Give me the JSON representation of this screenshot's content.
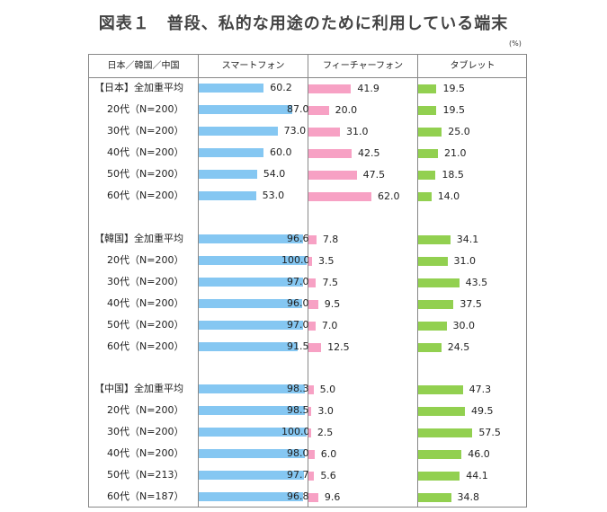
{
  "chart_data": {
    "type": "bar",
    "title": "図表１　普段、私的な用途のために利用している端末",
    "unit": "(%)",
    "header_label": "日本／韓国／中国",
    "columns": [
      {
        "name": "スマートフォン",
        "color": "#85c7f2"
      },
      {
        "name": "フィーチャーフォン",
        "color": "#f7a1c4"
      },
      {
        "name": "タブレット",
        "color": "#92d050"
      }
    ],
    "groups": [
      {
        "rows": [
          {
            "label": "【日本】全加重平均",
            "values": [
              60.2,
              41.9,
              19.5
            ]
          },
          {
            "label": "20代（N=200）",
            "values": [
              87.0,
              20.0,
              19.5
            ]
          },
          {
            "label": "30代（N=200）",
            "values": [
              73.0,
              31.0,
              25.0
            ]
          },
          {
            "label": "40代（N=200）",
            "values": [
              60.0,
              42.5,
              21.0
            ]
          },
          {
            "label": "50代（N=200）",
            "values": [
              54.0,
              47.5,
              18.5
            ]
          },
          {
            "label": "60代（N=200）",
            "values": [
              53.0,
              62.0,
              14.0
            ]
          }
        ]
      },
      {
        "rows": [
          {
            "label": "【韓国】全加重平均",
            "values": [
              96.6,
              7.8,
              34.1
            ]
          },
          {
            "label": "20代（N=200）",
            "values": [
              100.0,
              3.5,
              31.0
            ]
          },
          {
            "label": "30代（N=200）",
            "values": [
              97.0,
              7.5,
              43.5
            ]
          },
          {
            "label": "40代（N=200）",
            "values": [
              96.0,
              9.5,
              37.5
            ]
          },
          {
            "label": "50代（N=200）",
            "values": [
              97.0,
              7.0,
              30.0
            ]
          },
          {
            "label": "60代（N=200）",
            "values": [
              91.5,
              12.5,
              24.5
            ]
          }
        ]
      },
      {
        "rows": [
          {
            "label": "【中国】全加重平均",
            "values": [
              98.3,
              5.0,
              47.3
            ]
          },
          {
            "label": "20代（N=200）",
            "values": [
              98.5,
              3.0,
              49.5
            ]
          },
          {
            "label": "30代（N=200）",
            "values": [
              100.0,
              2.5,
              57.5
            ]
          },
          {
            "label": "40代（N=200）",
            "values": [
              98.0,
              6.0,
              46.0
            ]
          },
          {
            "label": "50代（N=213）",
            "values": [
              97.7,
              5.6,
              44.1
            ]
          },
          {
            "label": "60代（N=187）",
            "values": [
              96.8,
              9.6,
              34.8
            ]
          }
        ]
      }
    ]
  }
}
